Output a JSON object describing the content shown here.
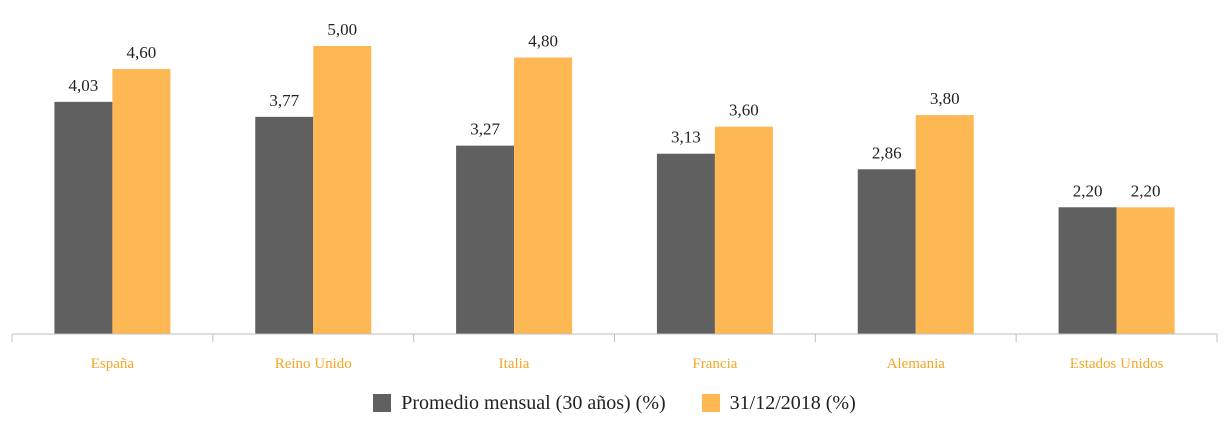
{
  "chart_data": {
    "type": "bar",
    "categories": [
      "España",
      "Reino Unido",
      "Italia",
      "Francia",
      "Alemania",
      "Estados Unidos"
    ],
    "series": [
      {
        "name": "Promedio mensual (30 años) (%)",
        "values": [
          "4,03",
          "3,77",
          "3,27",
          "3,13",
          "2,86",
          "2,20"
        ],
        "numeric": [
          4.03,
          3.77,
          3.27,
          3.13,
          2.86,
          2.2
        ],
        "color": "#616061"
      },
      {
        "name": "31/12/2018 (%)",
        "values": [
          "4,60",
          "5,00",
          "4,80",
          "3,60",
          "3,80",
          "2,20"
        ],
        "numeric": [
          4.6,
          5.0,
          4.8,
          3.6,
          3.8,
          2.2
        ],
        "color": "#FDB853"
      }
    ],
    "title": "",
    "xlabel": "",
    "ylabel": "",
    "ylim": [
      0,
      5.0
    ],
    "grid": false,
    "legend_position": "bottom",
    "category_label_color": "#F5A623"
  }
}
